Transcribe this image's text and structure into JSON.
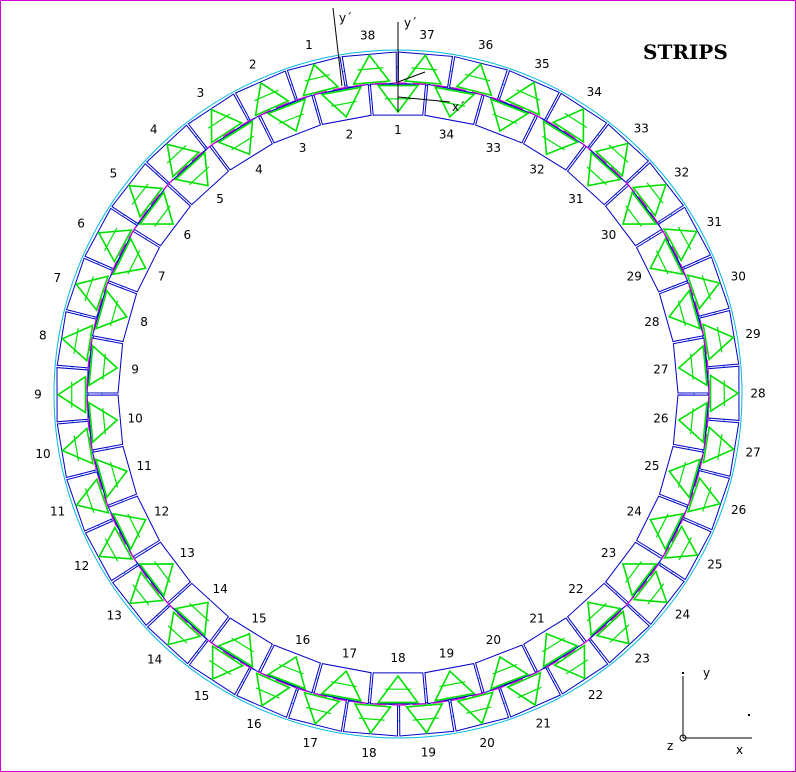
{
  "title": "STRIPS",
  "outer_ring_labels": [
    "1",
    "2",
    "3",
    "4",
    "5",
    "6",
    "7",
    "8",
    "9",
    "10",
    "11",
    "12",
    "13",
    "14",
    "15",
    "16",
    "17",
    "18",
    "19",
    "20",
    "21",
    "22",
    "23",
    "24",
    "25",
    "26",
    "27",
    "28",
    "29",
    "30",
    "31",
    "32",
    "33",
    "34",
    "35",
    "36",
    "37",
    "38"
  ],
  "inner_ring_labels": [
    "1",
    "2",
    "3",
    "4",
    "5",
    "6",
    "7",
    "8",
    "9",
    "10",
    "11",
    "12",
    "13",
    "14",
    "15",
    "16",
    "17",
    "18",
    "19",
    "20",
    "21",
    "22",
    "23",
    "24",
    "25",
    "26",
    "27",
    "28",
    "29",
    "30",
    "31",
    "32",
    "33",
    "34"
  ],
  "local_axes": {
    "outer_y": "y´",
    "inner_y": "y´",
    "inner_x": "x´"
  },
  "global_axes": {
    "x": "x",
    "y": "y",
    "z": "z"
  },
  "colors": {
    "frame": "#d400d4",
    "module_outline": "#0000c8",
    "ring_boundary": "#00b8e0",
    "strip_triangles": "#00e000",
    "cable_line": "#d000d0"
  }
}
